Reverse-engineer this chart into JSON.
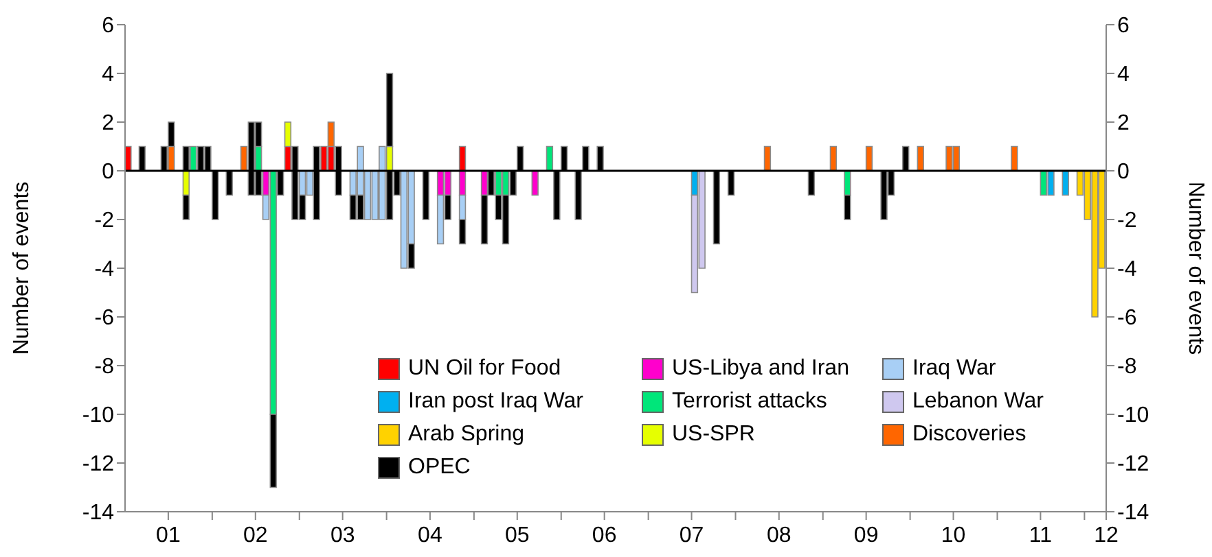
{
  "chart_data": {
    "type": "bar",
    "stacked": true,
    "ylabel": "Number of events",
    "y2label": "Number of events",
    "x": [
      "2001-01-15",
      "2001-03-15",
      "2001-06-15",
      "2001-07-15",
      "2001-09-15",
      "2001-10-15",
      "2001-11-15",
      "2001-12-15",
      "2002-01-15",
      "2002-03-15",
      "2002-05-15",
      "2002-06-15",
      "2002-07-15",
      "2002-08-15",
      "2002-09-15",
      "2002-10-15",
      "2002-11-15",
      "2002-12-15",
      "2003-01-15",
      "2003-02-15",
      "2003-03-15",
      "2003-04-15",
      "2003-05-15",
      "2003-06-15",
      "2003-08-15",
      "2003-09-15",
      "2003-10-15",
      "2003-11-15",
      "2003-12-15",
      "2004-01-15",
      "2004-02-15",
      "2004-03-15",
      "2004-04-15",
      "2004-06-15",
      "2004-08-15",
      "2004-09-15",
      "2004-11-15",
      "2005-02-15",
      "2005-03-15",
      "2005-04-15",
      "2005-05-15",
      "2005-06-15",
      "2005-07-15",
      "2005-09-15",
      "2005-11-15",
      "2005-12-15",
      "2006-01-15",
      "2006-03-15",
      "2006-04-15",
      "2006-06-15",
      "2007-07-15",
      "2007-08-15",
      "2007-10-15",
      "2007-12-15",
      "2008-05-15",
      "2008-11-15",
      "2009-02-15",
      "2009-04-15",
      "2009-07-15",
      "2009-09-15",
      "2009-10-15",
      "2009-12-15",
      "2010-02-15",
      "2010-06-15",
      "2010-07-15",
      "2011-03-15",
      "2011-07-15",
      "2011-08-15",
      "2011-10-15",
      "2011-12-15",
      "2012-01-15",
      "2012-02-15",
      "2012-03-15"
    ],
    "xlim": [
      "2001-01-01",
      "2012-04-01"
    ],
    "xticks": [
      {
        "value": "2001-07-01",
        "label": "01"
      },
      {
        "value": "2002-01-01",
        "label": null
      },
      {
        "value": "2002-07-01",
        "label": "02"
      },
      {
        "value": "2003-01-01",
        "label": null
      },
      {
        "value": "2003-07-01",
        "label": "03"
      },
      {
        "value": "2004-01-01",
        "label": null
      },
      {
        "value": "2004-07-01",
        "label": "04"
      },
      {
        "value": "2005-01-01",
        "label": null
      },
      {
        "value": "2005-07-01",
        "label": "05"
      },
      {
        "value": "2006-01-01",
        "label": null
      },
      {
        "value": "2006-07-01",
        "label": "06"
      },
      {
        "value": "2007-01-01",
        "label": null
      },
      {
        "value": "2007-07-01",
        "label": "07"
      },
      {
        "value": "2008-01-01",
        "label": null
      },
      {
        "value": "2008-07-01",
        "label": "08"
      },
      {
        "value": "2009-01-01",
        "label": null
      },
      {
        "value": "2009-07-01",
        "label": "09"
      },
      {
        "value": "2010-01-01",
        "label": null
      },
      {
        "value": "2010-07-01",
        "label": "10"
      },
      {
        "value": "2011-01-01",
        "label": null
      },
      {
        "value": "2011-07-01",
        "label": "11"
      },
      {
        "value": "2012-01-01",
        "label": null
      },
      {
        "value": "2012-04-01",
        "label": "12"
      }
    ],
    "ylim": [
      -14,
      6
    ],
    "yticks": [
      -14,
      -12,
      -10,
      -8,
      -6,
      -4,
      -2,
      0,
      2,
      4,
      6
    ],
    "y2lim": [
      -14,
      6
    ],
    "y2ticks": [
      -14,
      -12,
      -10,
      -8,
      -6,
      -4,
      -2,
      0,
      2,
      4,
      6
    ],
    "legend": "bottom right",
    "ref_lines": [
      {
        "axis": "y",
        "value": 0,
        "color": "#000000"
      }
    ],
    "series": [
      {
        "name": "UN Oil for Food",
        "color": "#ff0000",
        "values": [
          1,
          null,
          null,
          null,
          null,
          null,
          null,
          null,
          null,
          null,
          null,
          null,
          null,
          null,
          null,
          null,
          1,
          null,
          null,
          null,
          null,
          1,
          1,
          null,
          null,
          null,
          null,
          null,
          null,
          null,
          null,
          null,
          null,
          null,
          null,
          null,
          1,
          null,
          null,
          null,
          null,
          null,
          null,
          null,
          null,
          null,
          null,
          null,
          null,
          null,
          null,
          null,
          null,
          null,
          null,
          null,
          null,
          null,
          null,
          null,
          null,
          null,
          null,
          null,
          null,
          null,
          null,
          null,
          null,
          null,
          null,
          null,
          null
        ]
      },
      {
        "name": "US-Libya and Iran",
        "color": "#ff00cc",
        "values": [
          null,
          null,
          null,
          null,
          null,
          null,
          null,
          null,
          null,
          null,
          null,
          null,
          null,
          -1,
          null,
          null,
          null,
          null,
          null,
          null,
          null,
          null,
          null,
          null,
          null,
          null,
          null,
          null,
          null,
          null,
          null,
          null,
          null,
          null,
          -1,
          -1,
          -1,
          -1,
          null,
          null,
          null,
          null,
          null,
          -1,
          null,
          null,
          null,
          null,
          null,
          null,
          null,
          null,
          null,
          null,
          null,
          null,
          null,
          null,
          null,
          null,
          null,
          null,
          null,
          null,
          null,
          null,
          null,
          null,
          null,
          null,
          null,
          null,
          null
        ]
      },
      {
        "name": "Iraq War",
        "color": "#a8cff5",
        "values": [
          null,
          null,
          null,
          null,
          null,
          null,
          null,
          null,
          null,
          null,
          null,
          null,
          null,
          -1,
          null,
          null,
          null,
          null,
          -1,
          -1,
          null,
          null,
          null,
          null,
          -1,
          -1,
          -2,
          -2,
          -2,
          null,
          null,
          -4,
          -3,
          null,
          -2,
          null,
          -1,
          null,
          null,
          null,
          null,
          null,
          null,
          null,
          null,
          null,
          null,
          null,
          null,
          null,
          null,
          null,
          null,
          null,
          null,
          null,
          null,
          null,
          null,
          null,
          null,
          null,
          null,
          null,
          null,
          null,
          null,
          null,
          null,
          null,
          null,
          null,
          null
        ]
      },
      {
        "name": "Iran post Iraq War",
        "color": "#00b0f0",
        "values": [
          null,
          null,
          null,
          null,
          null,
          null,
          null,
          null,
          null,
          null,
          null,
          null,
          null,
          null,
          null,
          null,
          null,
          null,
          null,
          null,
          null,
          null,
          null,
          null,
          null,
          null,
          null,
          null,
          null,
          null,
          null,
          null,
          null,
          null,
          null,
          null,
          null,
          null,
          null,
          null,
          null,
          null,
          null,
          null,
          null,
          null,
          null,
          null,
          null,
          null,
          -1,
          null,
          null,
          null,
          null,
          null,
          null,
          null,
          null,
          null,
          null,
          null,
          null,
          null,
          null,
          null,
          null,
          -1,
          -1,
          null,
          null,
          null,
          null
        ]
      },
      {
        "name": "Terrorist attacks",
        "color": "#00e67a",
        "values": [
          null,
          null,
          null,
          null,
          null,
          1,
          null,
          null,
          null,
          null,
          null,
          null,
          1,
          null,
          -10,
          null,
          null,
          null,
          null,
          null,
          null,
          null,
          null,
          null,
          null,
          null,
          null,
          null,
          null,
          null,
          null,
          null,
          null,
          null,
          null,
          null,
          null,
          null,
          null,
          -1,
          -1,
          null,
          null,
          null,
          1,
          null,
          null,
          null,
          null,
          null,
          null,
          null,
          null,
          null,
          null,
          null,
          null,
          -1,
          null,
          null,
          null,
          null,
          null,
          null,
          null,
          null,
          -1,
          null,
          null,
          null,
          null,
          null,
          null
        ]
      },
      {
        "name": "Lebanon War",
        "color": "#cfc8ef",
        "values": [
          null,
          null,
          null,
          null,
          null,
          null,
          null,
          null,
          null,
          null,
          null,
          null,
          null,
          null,
          null,
          null,
          null,
          null,
          null,
          null,
          null,
          null,
          null,
          null,
          null,
          null,
          null,
          null,
          null,
          null,
          null,
          null,
          null,
          null,
          null,
          null,
          null,
          null,
          null,
          null,
          null,
          null,
          null,
          null,
          null,
          null,
          null,
          null,
          null,
          null,
          -4,
          -4,
          null,
          null,
          null,
          null,
          null,
          null,
          null,
          null,
          null,
          null,
          null,
          null,
          null,
          null,
          null,
          null,
          null,
          null,
          null,
          null,
          null
        ]
      },
      {
        "name": "Arab Spring",
        "color": "#ffd200",
        "values": [
          null,
          null,
          null,
          null,
          null,
          null,
          null,
          null,
          null,
          null,
          null,
          null,
          null,
          null,
          null,
          null,
          null,
          null,
          null,
          null,
          null,
          null,
          null,
          null,
          null,
          null,
          null,
          null,
          null,
          null,
          null,
          null,
          null,
          null,
          null,
          null,
          null,
          null,
          null,
          null,
          null,
          null,
          null,
          null,
          null,
          null,
          null,
          null,
          null,
          null,
          null,
          null,
          null,
          null,
          null,
          null,
          null,
          null,
          null,
          null,
          null,
          null,
          null,
          null,
          null,
          null,
          null,
          null,
          null,
          -1,
          -2,
          -6,
          -4
        ]
      },
      {
        "name": "US-SPR",
        "color": "#e6ff00",
        "values": [
          null,
          null,
          null,
          null,
          -1,
          null,
          null,
          null,
          null,
          null,
          null,
          null,
          null,
          null,
          null,
          null,
          1,
          null,
          null,
          null,
          null,
          null,
          null,
          null,
          null,
          null,
          null,
          null,
          null,
          1,
          null,
          null,
          null,
          null,
          null,
          null,
          null,
          null,
          null,
          null,
          null,
          null,
          null,
          null,
          null,
          null,
          null,
          null,
          null,
          null,
          null,
          null,
          null,
          null,
          null,
          null,
          null,
          null,
          null,
          null,
          null,
          null,
          null,
          null,
          null,
          null,
          null,
          null,
          null,
          null,
          null,
          null,
          null
        ]
      },
      {
        "name": "Discoveries",
        "color": "#ff6600",
        "values": [
          null,
          null,
          null,
          1,
          null,
          null,
          null,
          null,
          null,
          null,
          1,
          null,
          null,
          null,
          null,
          null,
          null,
          null,
          null,
          null,
          null,
          null,
          1,
          null,
          null,
          null,
          null,
          null,
          null,
          null,
          null,
          null,
          null,
          null,
          null,
          null,
          null,
          null,
          null,
          null,
          null,
          null,
          null,
          null,
          null,
          null,
          null,
          null,
          null,
          null,
          null,
          null,
          null,
          null,
          1,
          null,
          1,
          null,
          1,
          null,
          null,
          null,
          1,
          1,
          1,
          1,
          null,
          null,
          null,
          null,
          null,
          null,
          null
        ]
      },
      {
        "name": "OPEC",
        "color": "#000000",
        "values": [
          null,
          1,
          1,
          null,
          1,
          null,
          1,
          1,
          -2,
          -1,
          null,
          2,
          1,
          null,
          -3,
          -1,
          null,
          1,
          -1,
          null,
          1,
          null,
          null,
          1,
          -1,
          -1,
          null,
          null,
          null,
          3,
          -1,
          null,
          -1,
          -2,
          null,
          -1,
          -1,
          -2,
          -1,
          -1,
          -2,
          -1,
          1,
          null,
          null,
          -2,
          1,
          -2,
          1,
          1,
          null,
          null,
          -3,
          -1,
          null,
          -1,
          null,
          -1,
          null,
          -2,
          -1,
          1,
          null,
          null,
          null,
          null,
          null,
          null,
          null,
          null,
          null,
          null,
          null
        ]
      },
      {
        "color": "#000000",
        "values": [
          null,
          null,
          null,
          1,
          -1,
          null,
          null,
          null,
          null,
          null,
          null,
          -1,
          -1,
          null,
          null,
          null,
          null,
          -2,
          null,
          null,
          -2,
          null,
          null,
          -1,
          null,
          null,
          null,
          null,
          null,
          -2,
          null,
          null,
          null,
          null,
          null,
          null,
          null,
          null,
          null,
          null,
          null,
          null,
          null,
          null,
          null,
          null,
          null,
          null,
          null,
          null,
          null,
          null,
          null,
          null,
          null,
          null,
          null,
          null,
          null,
          null,
          null,
          null,
          null,
          null,
          null,
          null,
          null,
          null,
          null,
          null,
          null,
          null,
          null
        ]
      },
      {
        "color": "#a8cff5",
        "values": [
          null,
          null,
          null,
          null,
          null,
          null,
          null,
          null,
          null,
          null,
          null,
          null,
          null,
          null,
          null,
          null,
          null,
          null,
          null,
          null,
          null,
          null,
          null,
          null,
          null,
          1,
          null,
          null,
          1,
          null,
          null,
          null,
          null,
          null,
          null,
          null,
          null,
          null,
          null,
          null,
          null,
          null,
          null,
          null,
          null,
          null,
          null,
          null,
          null,
          null,
          null,
          null,
          null,
          null,
          null,
          null,
          null,
          null,
          null,
          null,
          null,
          null,
          null,
          null,
          null,
          null,
          null,
          null,
          null,
          null,
          null,
          null,
          null
        ]
      }
    ]
  }
}
